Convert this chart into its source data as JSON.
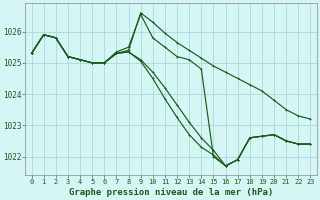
{
  "title": "Graphe pression niveau de la mer (hPa)",
  "bg_color": "#d6f5f5",
  "grid_color": "#a8dada",
  "line_color": "#1a5c1a",
  "xlim": [
    -0.5,
    23.5
  ],
  "ylim": [
    1021.4,
    1026.9
  ],
  "yticks": [
    1022,
    1023,
    1024,
    1025,
    1026
  ],
  "xticks": [
    0,
    1,
    2,
    3,
    4,
    5,
    6,
    7,
    8,
    9,
    10,
    11,
    12,
    13,
    14,
    15,
    16,
    17,
    18,
    19,
    20,
    21,
    22,
    23
  ],
  "series": [
    [
      1025.3,
      1025.9,
      1025.8,
      1025.2,
      1025.1,
      1025.0,
      1025.0,
      1025.35,
      1025.5,
      1026.55,
      1025.8,
      1025.5,
      1025.2,
      1025.1,
      1024.8,
      1022.0,
      1021.7,
      1021.9,
      1022.6,
      1022.65,
      1022.7,
      1022.5,
      1022.4,
      1022.4
    ],
    [
      1025.3,
      1025.9,
      1025.8,
      1025.2,
      1025.1,
      1025.0,
      1025.0,
      1025.3,
      1025.4,
      1026.6,
      1026.3,
      1025.95,
      1025.65,
      1025.4,
      1025.15,
      1024.9,
      1024.7,
      1024.5,
      1024.3,
      1024.1,
      1023.8,
      1023.5,
      1023.3,
      1023.2
    ],
    [
      1025.3,
      1025.9,
      1025.8,
      1025.2,
      1025.1,
      1025.0,
      1025.0,
      1025.3,
      1025.35,
      1025.05,
      1024.5,
      1023.85,
      1023.25,
      1022.7,
      1022.3,
      1022.05,
      1021.7,
      1021.9,
      1022.6,
      1022.65,
      1022.7,
      1022.5,
      1022.4,
      1022.4
    ],
    [
      1025.3,
      1025.9,
      1025.8,
      1025.2,
      1025.1,
      1025.0,
      1025.0,
      1025.3,
      1025.35,
      1025.1,
      1024.7,
      1024.2,
      1023.65,
      1023.1,
      1022.6,
      1022.2,
      1021.7,
      1021.9,
      1022.6,
      1022.65,
      1022.7,
      1022.5,
      1022.4,
      1022.4
    ]
  ],
  "ylabel_fontsize": 5.5,
  "xlabel_fontsize": 5.5,
  "tick_fontsize": 5.0,
  "title_fontsize": 6.5,
  "linewidth": 0.85,
  "markersize": 2.0
}
